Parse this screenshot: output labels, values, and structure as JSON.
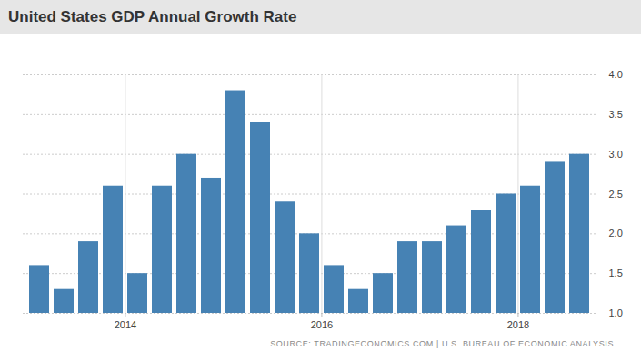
{
  "chart_data": {
    "type": "bar",
    "title": "United States GDP Annual Growth Rate",
    "caption": "SOURCE: TRADINGECONOMICS.COM | U.S. BUREAU OF ECONOMIC ANALYSIS",
    "categories": [
      null,
      null,
      null,
      null,
      "2014",
      null,
      null,
      null,
      null,
      null,
      null,
      null,
      "2016",
      null,
      null,
      null,
      null,
      null,
      null,
      null,
      "2018",
      null,
      null
    ],
    "values": [
      1.6,
      1.3,
      1.9,
      2.6,
      1.5,
      2.6,
      3.0,
      2.7,
      3.8,
      3.4,
      2.4,
      2.0,
      1.6,
      1.3,
      1.5,
      1.9,
      1.9,
      2.1,
      2.3,
      2.5,
      2.6,
      2.9,
      3.0
    ],
    "color": "#4682b4",
    "ylim": [
      1,
      4
    ],
    "yticks": [
      1,
      1.5,
      2,
      2.5,
      3,
      3.5,
      4
    ],
    "grid": true
  }
}
